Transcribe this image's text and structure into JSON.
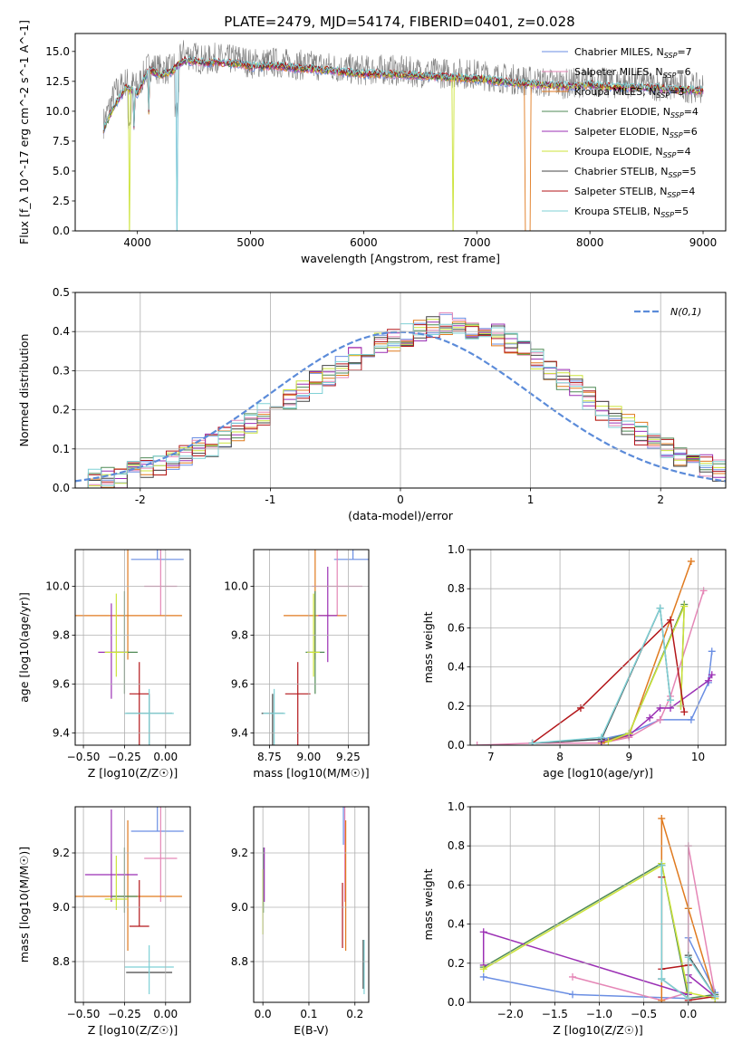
{
  "colors": {
    "s0": "#6a8ee3",
    "s1": "#e586b6",
    "s2": "#e07a1f",
    "s3": "#4f8a55",
    "s4": "#9b2fb4",
    "s5": "#cce33a",
    "s6": "#444444",
    "s7": "#b3161a",
    "s8": "#7fd1d6"
  },
  "chart_data": [
    {
      "type": "line",
      "title": "PLATE=2479, MJD=54174, FIBERID=0401, z=0.028",
      "xlabel": "wavelength [Angstrom, rest frame]",
      "ylabel": "Flux [f_λ 10^-17 erg cm^-2 s^-1 A^-1]",
      "xlim": [
        3450,
        9200
      ],
      "ylim": [
        0,
        16.5
      ],
      "xticks": [
        4000,
        5000,
        6000,
        7000,
        8000,
        9000
      ],
      "yticks": [
        0.0,
        2.5,
        5.0,
        7.5,
        10.0,
        12.5,
        15.0
      ],
      "data_series": {
        "name": "data",
        "color": "#808080",
        "x": [
          3700,
          3800,
          3900,
          4000,
          4100,
          4200,
          4300,
          4400,
          4500,
          4600,
          4700,
          4800,
          4900,
          5000,
          5200,
          5400,
          5600,
          5800,
          6000,
          6200,
          6400,
          6600,
          6800,
          7000,
          7200,
          7400,
          7600,
          7800,
          8000,
          8200,
          8400,
          8600,
          8800,
          9000
        ],
        "y": [
          9.0,
          11.5,
          12.5,
          12.0,
          13.8,
          13.5,
          13.5,
          14.8,
          14.6,
          14.2,
          14.5,
          14.3,
          14.4,
          14.0,
          14.1,
          13.9,
          13.8,
          13.6,
          13.4,
          13.5,
          13.3,
          13.2,
          13.2,
          13.1,
          12.8,
          12.6,
          12.4,
          12.3,
          12.5,
          12.3,
          12.4,
          12.1,
          12.0,
          11.9
        ]
      },
      "legend": [
        {
          "name": "Chabrier MILES",
          "n": "7"
        },
        {
          "name": "Salpeter MILES",
          "n": "6"
        },
        {
          "name": "Kroupa MILES",
          "n": "3"
        },
        {
          "name": "Chabrier ELODIE",
          "n": "4"
        },
        {
          "name": "Salpeter ELODIE",
          "n": "6"
        },
        {
          "name": "Kroupa ELODIE",
          "n": "4"
        },
        {
          "name": "Chabrier STELIB",
          "n": "5"
        },
        {
          "name": "Salpeter STELIB",
          "n": "4"
        },
        {
          "name": "Kroupa STELIB",
          "n": "5"
        }
      ],
      "model_x": [
        3700,
        3800,
        3900,
        4000,
        4100,
        4200,
        4300,
        4400,
        4500,
        4600,
        4700,
        4800,
        4900,
        5000,
        5200,
        5400,
        5600,
        5800,
        6000,
        6200,
        6400,
        6600,
        6800,
        7000,
        7200,
        7400,
        7600,
        7800,
        8000,
        8200,
        8400,
        8600,
        8800,
        9000
      ],
      "model_y": [
        8.5,
        10.5,
        12.0,
        11.5,
        13.5,
        13.0,
        13.3,
        14.2,
        14.2,
        14.0,
        14.1,
        14.0,
        14.0,
        13.7,
        13.8,
        13.6,
        13.5,
        13.3,
        13.1,
        13.1,
        13.0,
        12.9,
        12.8,
        12.7,
        12.5,
        12.3,
        12.2,
        12.1,
        12.2,
        12.0,
        12.0,
        11.9,
        11.8,
        11.7
      ],
      "dropouts": [
        {
          "series": 2,
          "x": 7430
        },
        {
          "series": 5,
          "x": 6790
        },
        {
          "series": 5,
          "x": 3930
        },
        {
          "series": 8,
          "x": 4350
        },
        {
          "series": 0,
          "x": 4350
        }
      ]
    },
    {
      "type": "histogram",
      "xlabel": "(data-model)/error",
      "ylabel": "Normed distribution",
      "xlim": [
        -2.5,
        2.5
      ],
      "ylim": [
        0,
        0.5
      ],
      "xticks": [
        -2,
        -1,
        0,
        1,
        2
      ],
      "yticks": [
        0.0,
        0.1,
        0.2,
        0.3,
        0.4,
        0.5
      ],
      "normal_label": "N(0,1)",
      "bin_start": -2.5,
      "bin_width": 0.1,
      "bins_reference": [
        0.02,
        0.02,
        0.025,
        0.03,
        0.04,
        0.05,
        0.06,
        0.075,
        0.085,
        0.1,
        0.11,
        0.13,
        0.15,
        0.17,
        0.19,
        0.21,
        0.23,
        0.25,
        0.27,
        0.29,
        0.31,
        0.33,
        0.35,
        0.37,
        0.38,
        0.39,
        0.4,
        0.41,
        0.42,
        0.42,
        0.41,
        0.4,
        0.39,
        0.37,
        0.35,
        0.33,
        0.3,
        0.28,
        0.26,
        0.23,
        0.2,
        0.18,
        0.16,
        0.14,
        0.12,
        0.1,
        0.085,
        0.07,
        0.055,
        0.045,
        0.035,
        0.03,
        0.025
      ]
    },
    {
      "type": "scatter",
      "xlabel": "Z [log10(Z/Z☉)]",
      "ylabel": "age [log10(age/yr)]",
      "xlim": [
        -0.55,
        0.15
      ],
      "ylim": [
        9.35,
        10.15
      ],
      "xticks": [
        -0.5,
        -0.25,
        0.0
      ],
      "xticklabels": [
        "−0.50",
        "−0.25",
        "0.00"
      ],
      "yticks": [
        9.4,
        9.6,
        9.8,
        10.0
      ],
      "points": [
        {
          "x": -0.05,
          "y": 10.11,
          "ex": 0.16,
          "ey": [
            0.17,
            0.0
          ]
        },
        {
          "x": -0.03,
          "y": 10.0,
          "ex": 0.1,
          "ey": [
            0.16,
            0.12
          ]
        },
        {
          "x": -0.23,
          "y": 9.88,
          "ex": 0.33,
          "ey": [
            0.44,
            0.18
          ]
        },
        {
          "x": -0.25,
          "y": 9.73,
          "ex": 0.08,
          "ey": [
            0.25,
            0.17
          ]
        },
        {
          "x": -0.33,
          "y": 9.73,
          "ex": 0.08,
          "ey": [
            0.2,
            0.19
          ]
        },
        {
          "x": -0.3,
          "y": 9.73,
          "ex": 0.07,
          "ey": [
            0.24,
            0.1
          ]
        },
        {
          "x": -0.1,
          "y": 9.48,
          "ex": 0.14,
          "ey": [
            0.08,
            0.31
          ]
        },
        {
          "x": -0.16,
          "y": 9.56,
          "ex": 0.06,
          "ey": [
            0.13,
            0.32
          ]
        },
        {
          "x": -0.1,
          "y": 9.48,
          "ex": 0.15,
          "ey": [
            0.1,
            0.3
          ]
        }
      ]
    },
    {
      "type": "scatter",
      "xlabel": "mass [log10(M/M☉)]",
      "xlim": [
        8.65,
        9.38
      ],
      "ylim": [
        9.35,
        10.15
      ],
      "xticks": [
        8.75,
        9.0,
        9.25
      ],
      "xticklabels": [
        "8.75",
        "9.00",
        "9.25"
      ],
      "yticks": [
        9.4,
        9.6,
        9.8,
        10.0
      ],
      "points": [
        {
          "x": 9.28,
          "y": 10.11,
          "ex": 0.12,
          "ey": [
            0.17,
            0.0
          ]
        },
        {
          "x": 9.18,
          "y": 10.0,
          "ex": 0.16,
          "ey": [
            0.16,
            0.12
          ]
        },
        {
          "x": 9.04,
          "y": 9.88,
          "ex": 0.2,
          "ey": [
            0.44,
            0.18
          ]
        },
        {
          "x": 9.04,
          "y": 9.73,
          "ex": 0.06,
          "ey": [
            0.25,
            0.17
          ]
        },
        {
          "x": 9.12,
          "y": 9.88,
          "ex": 0.06,
          "ey": [
            0.2,
            0.19
          ]
        },
        {
          "x": 9.03,
          "y": 9.73,
          "ex": 0.04,
          "ey": [
            0.24,
            0.1
          ]
        },
        {
          "x": 8.77,
          "y": 9.48,
          "ex": 0.07,
          "ey": [
            0.08,
            0.31
          ]
        },
        {
          "x": 8.93,
          "y": 9.56,
          "ex": 0.08,
          "ey": [
            0.13,
            0.32
          ]
        },
        {
          "x": 8.78,
          "y": 9.48,
          "ex": 0.07,
          "ey": [
            0.1,
            0.3
          ]
        }
      ]
    },
    {
      "type": "line",
      "xlabel": "age [log10(age/yr)]",
      "ylabel": "mass weight",
      "xlim": [
        6.7,
        10.4
      ],
      "ylim": [
        0,
        1.0
      ],
      "xticks": [
        7,
        8,
        9,
        10
      ],
      "yticks": [
        0.0,
        0.2,
        0.4,
        0.6,
        0.8,
        1.0
      ],
      "series": [
        {
          "x": [
            7.6,
            8.6,
            9.0,
            9.45,
            9.9,
            10.15,
            10.2
          ],
          "y": [
            0.01,
            0.03,
            0.06,
            0.13,
            0.13,
            0.32,
            0.48
          ]
        },
        {
          "x": [
            6.8,
            7.6,
            8.6,
            9.0,
            9.45,
            9.6,
            10.08
          ],
          "y": [
            0.0,
            0.01,
            0.01,
            0.04,
            0.13,
            0.25,
            0.79
          ]
        },
        {
          "x": [
            8.6,
            9.0,
            9.9
          ],
          "y": [
            0.01,
            0.05,
            0.94
          ]
        },
        {
          "x": [
            8.6,
            9.0,
            9.8,
            9.75
          ],
          "y": [
            0.02,
            0.06,
            0.72,
            0.2
          ]
        },
        {
          "x": [
            8.6,
            9.0,
            9.3,
            9.45,
            9.6,
            10.15,
            10.2
          ],
          "y": [
            0.02,
            0.05,
            0.14,
            0.19,
            0.19,
            0.33,
            0.36
          ]
        },
        {
          "x": [
            8.7,
            9.0,
            9.8,
            9.75
          ],
          "y": [
            0.02,
            0.06,
            0.71,
            0.2
          ]
        },
        {
          "x": [
            7.6,
            8.6,
            9.45,
            9.6
          ],
          "y": [
            0.01,
            0.03,
            0.7,
            0.23
          ]
        },
        {
          "x": [
            7.6,
            8.3,
            9.6,
            9.8
          ],
          "y": [
            0.01,
            0.19,
            0.64,
            0.17
          ]
        },
        {
          "x": [
            7.6,
            8.6,
            9.45,
            9.6
          ],
          "y": [
            0.01,
            0.04,
            0.7,
            0.23
          ]
        }
      ]
    },
    {
      "type": "scatter",
      "xlabel": "Z [log10(Z/Z☉)]",
      "ylabel": "mass [log10(M/M☉)]",
      "xlim": [
        -0.55,
        0.15
      ],
      "ylim": [
        8.65,
        9.37
      ],
      "xticks": [
        -0.5,
        -0.25,
        0.0
      ],
      "xticklabels": [
        "−0.50",
        "−0.25",
        "0.00"
      ],
      "yticks": [
        8.8,
        9.0,
        9.2
      ],
      "points": [
        {
          "x": -0.05,
          "y": 9.28,
          "ex": 0.16,
          "ey": [
            0.3,
            0.0
          ]
        },
        {
          "x": -0.03,
          "y": 9.18,
          "ex": 0.1,
          "ey": [
            0.2,
            0.16
          ]
        },
        {
          "x": -0.23,
          "y": 9.04,
          "ex": 0.33,
          "ey": [
            0.28,
            0.2
          ]
        },
        {
          "x": -0.25,
          "y": 9.04,
          "ex": 0.08,
          "ey": [
            0.18,
            0.06
          ]
        },
        {
          "x": -0.33,
          "y": 9.12,
          "ex": 0.16,
          "ey": [
            0.24,
            0.1
          ]
        },
        {
          "x": -0.3,
          "y": 9.03,
          "ex": 0.07,
          "ey": [
            0.16,
            0.04
          ]
        },
        {
          "x": -0.1,
          "y": 8.76,
          "ex": 0.14,
          "ey": [
            0.0,
            0.0
          ]
        },
        {
          "x": -0.16,
          "y": 8.93,
          "ex": 0.06,
          "ey": [
            0.17,
            0.0
          ]
        },
        {
          "x": -0.1,
          "y": 8.78,
          "ex": 0.15,
          "ey": [
            0.08,
            0.1
          ]
        }
      ]
    },
    {
      "type": "scatter",
      "xlabel": "E(B-V)",
      "xlim": [
        -0.02,
        0.23
      ],
      "ylim": [
        8.65,
        9.37
      ],
      "xticks": [
        0.0,
        0.1,
        0.2
      ],
      "xticklabels": [
        "0.0",
        "0.1",
        "0.2"
      ],
      "yticks": [
        8.8,
        9.0,
        9.2
      ],
      "points": [
        {
          "x": 0.175,
          "y": 9.28,
          "ey": [
            0.3,
            0.05
          ]
        },
        {
          "x": 0.178,
          "y": 9.18,
          "ey": [
            0.2,
            0.16
          ]
        },
        {
          "x": 0.18,
          "y": 9.04,
          "ey": [
            0.28,
            0.2
          ]
        },
        {
          "x": 0.001,
          "y": 9.04,
          "ey": [
            0.18,
            0.06
          ]
        },
        {
          "x": 0.003,
          "y": 9.12,
          "ey": [
            0.1,
            0.1
          ]
        },
        {
          "x": 0.0,
          "y": 9.0,
          "ey": [
            0.14,
            0.1
          ]
        },
        {
          "x": 0.218,
          "y": 8.78,
          "ey": [
            0.1,
            0.08
          ]
        },
        {
          "x": 0.173,
          "y": 8.97,
          "ey": [
            0.12,
            0.12
          ]
        },
        {
          "x": 0.22,
          "y": 8.77,
          "ey": [
            0.11,
            0.09
          ]
        }
      ]
    },
    {
      "type": "line",
      "xlabel": "Z [log10(Z/Z☉)]",
      "ylabel": "mass weight",
      "xlim": [
        -2.45,
        0.42
      ],
      "ylim": [
        0,
        1.0
      ],
      "xticks": [
        -2.0,
        -1.5,
        -1.0,
        -0.5,
        0.0
      ],
      "xticklabels": [
        "−2.0",
        "−1.5",
        "−1.0",
        "−0.5",
        "0.0"
      ],
      "yticks": [
        0.0,
        0.2,
        0.4,
        0.6,
        0.8,
        1.0
      ],
      "series": [
        {
          "x": [
            -2.3,
            -1.3,
            0.0,
            0.0,
            0.3
          ],
          "y": [
            0.13,
            0.04,
            0.02,
            0.33,
            0.05
          ]
        },
        {
          "x": [
            -1.3,
            -0.3,
            0.0,
            0.0,
            0.3
          ],
          "y": [
            0.13,
            0.01,
            0.05,
            0.8,
            0.04
          ]
        },
        {
          "x": [
            -0.3,
            -0.3,
            0.0,
            0.3
          ],
          "y": [
            0.01,
            0.94,
            0.48,
            0.02
          ]
        },
        {
          "x": [
            -2.3,
            -0.3,
            0.0,
            0.3
          ],
          "y": [
            0.18,
            0.71,
            0.02,
            0.04
          ]
        },
        {
          "x": [
            -2.3,
            -2.3,
            0.0,
            0.0,
            0.0,
            0.3
          ],
          "y": [
            0.19,
            0.36,
            0.04,
            0.1,
            0.14,
            0.03
          ]
        },
        {
          "x": [
            -2.3,
            -0.3,
            -0.3,
            0.0,
            0.3
          ],
          "y": [
            0.17,
            0.7,
            0.71,
            0.05,
            0.02
          ]
        },
        {
          "x": [
            -0.3,
            -0.3,
            0.0,
            0.0,
            0.3
          ],
          "y": [
            0.7,
            0.12,
            0.02,
            0.24,
            0.03
          ]
        },
        {
          "x": [
            -0.3,
            -0.3,
            0.0,
            0.0,
            0.3
          ],
          "y": [
            0.64,
            0.17,
            0.19,
            0.01,
            0.03
          ]
        },
        {
          "x": [
            -0.3,
            -0.3,
            0.0,
            0.0,
            0.3
          ],
          "y": [
            0.7,
            0.12,
            0.02,
            0.23,
            0.03
          ]
        }
      ]
    }
  ]
}
